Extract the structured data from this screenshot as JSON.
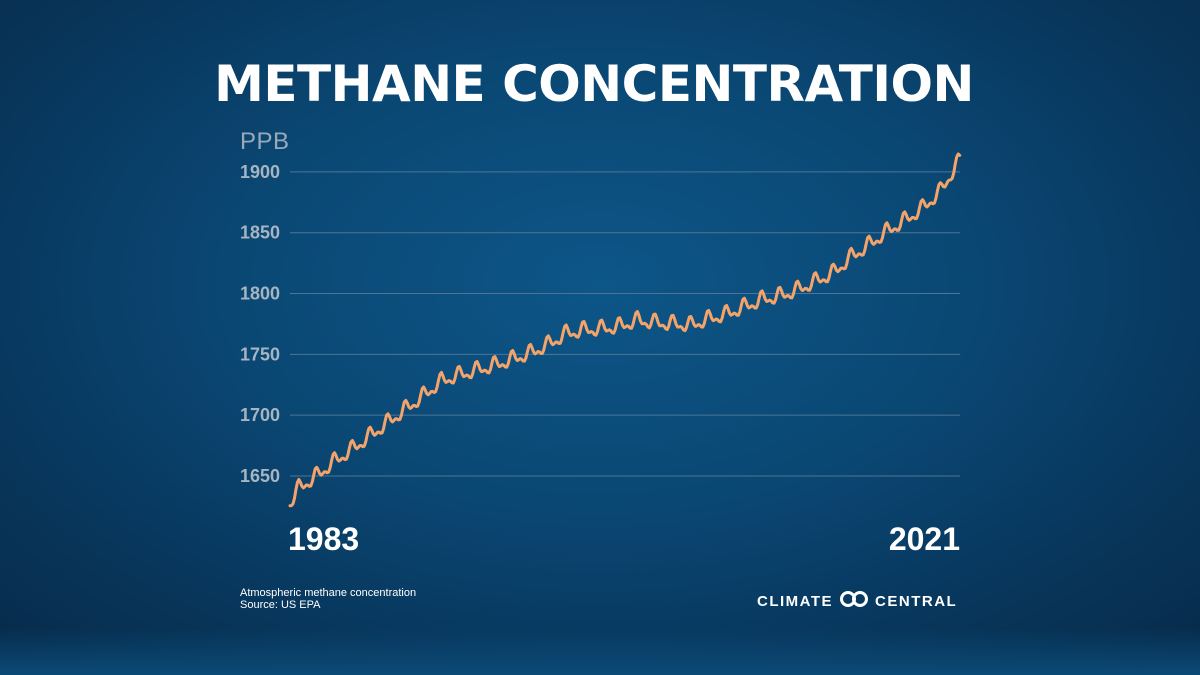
{
  "title": "METHANE CONCENTRATION",
  "footer": {
    "caption_line1": "Atmospheric methane concentration",
    "caption_line2": "Source: US EPA",
    "logo_word1": "CLIMATE",
    "logo_word2": "CENTRAL"
  },
  "colors": {
    "line": "#f4a46a",
    "gridline": "#4d7597",
    "tick_label": "#a7b4c1",
    "title": "#ffffff"
  },
  "chart_data": {
    "type": "line",
    "title": "METHANE CONCENTRATION",
    "ylabel": "PPB",
    "xlabel": "",
    "x_tick_labels": [
      "1983",
      "2021"
    ],
    "xlim": [
      1983.5,
      2021.1
    ],
    "ylim": [
      1622,
      1918
    ],
    "y_ticks": [
      1650,
      1700,
      1750,
      1800,
      1850,
      1900
    ],
    "grid": "horizontal",
    "legend": "none",
    "seasonal_amplitude_ppb": 8,
    "series": [
      {
        "x": [
          1983.5,
          1984,
          1985,
          1986,
          1987,
          1988,
          1989,
          1990,
          1991,
          1992,
          1993,
          1994,
          1995,
          1996,
          1997,
          1998,
          1999,
          2000,
          2001,
          2002,
          2003,
          2004,
          2005,
          2006,
          2007,
          2008,
          2009,
          2010,
          2011,
          2012,
          2013,
          2014,
          2015,
          2016,
          2017,
          2018,
          2019,
          2020,
          2021.1
        ],
        "y": [
          1628,
          1640,
          1650,
          1662,
          1672,
          1683,
          1694,
          1705,
          1716,
          1728,
          1733,
          1737,
          1741,
          1746,
          1751,
          1758,
          1767,
          1770,
          1771,
          1773,
          1778,
          1776,
          1775,
          1774,
          1779,
          1783,
          1789,
          1795,
          1798,
          1803,
          1810,
          1817,
          1830,
          1840,
          1851,
          1860,
          1870,
          1884,
          1910
        ]
      }
    ]
  }
}
